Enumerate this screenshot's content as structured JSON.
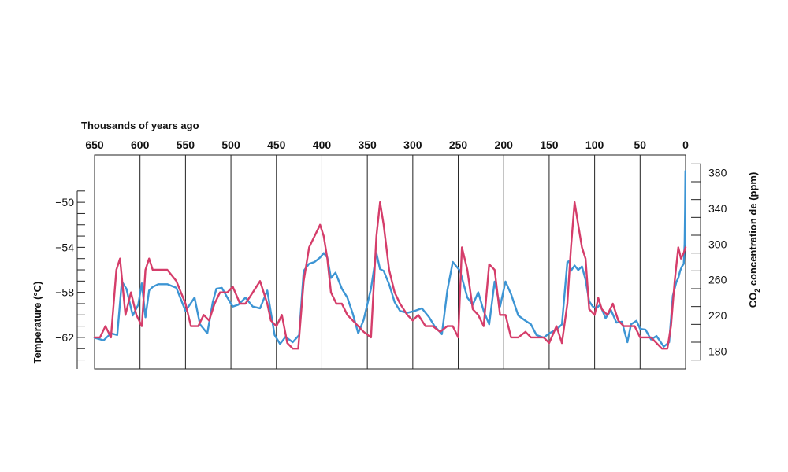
{
  "chart_data": {
    "type": "line",
    "xlabel": "Thousands of years ago",
    "x_ticks": [
      "650",
      "600",
      "550",
      "500",
      "450",
      "400",
      "350",
      "300",
      "250",
      "200",
      "150",
      "100",
      "50",
      "0"
    ],
    "xlim": [
      650,
      0
    ],
    "y_left": {
      "label": "Temperature (°C)",
      "ticks": [
        "−50",
        "−54",
        "−58",
        "−62"
      ],
      "tick_values": [
        -50,
        -54,
        -58,
        -62
      ],
      "lim": [
        -64.8,
        -45.8
      ]
    },
    "y_right": {
      "label_prefix": "CO",
      "label_sub": "2",
      "label_suffix": " concentration de  (ppm)",
      "ticks": [
        "380",
        "340",
        "300",
        "260",
        "220",
        "180"
      ],
      "tick_values": [
        380,
        340,
        300,
        260,
        220,
        180
      ],
      "lim": [
        160,
        400
      ]
    },
    "series": [
      {
        "axis": "right",
        "color": "#3d95d4",
        "x": [
          650,
          640,
          632,
          625,
          620,
          615,
          608,
          602,
          598,
          594,
          590,
          586,
          580,
          570,
          560,
          550,
          540,
          534,
          526,
          520,
          516,
          510,
          504,
          498,
          492,
          484,
          476,
          468,
          460,
          452,
          446,
          440,
          432,
          425,
          420,
          414,
          408,
          402,
          398,
          394,
          390,
          385,
          378,
          372,
          366,
          360,
          354,
          346,
          340,
          336,
          332,
          326,
          320,
          314,
          306,
          298,
          290,
          282,
          276,
          268,
          262,
          256,
          248,
          240,
          234,
          228,
          222,
          216,
          210,
          204,
          198,
          192,
          184,
          176,
          170,
          164,
          156,
          150,
          142,
          136,
          130,
          128,
          126,
          122,
          118,
          114,
          110,
          106,
          102,
          98,
          94,
          88,
          82,
          76,
          70,
          64,
          60,
          54,
          50,
          44,
          38,
          32,
          24,
          18,
          14,
          10,
          8,
          6,
          4,
          2,
          1,
          0.5,
          0.2
        ],
        "y": [
          195,
          192,
          200,
          198,
          258,
          250,
          220,
          232,
          256,
          218,
          248,
          252,
          255,
          255,
          251,
          225,
          240,
          210,
          200,
          235,
          250,
          251,
          240,
          230,
          232,
          240,
          230,
          228,
          248,
          198,
          188,
          196,
          190,
          198,
          270,
          278,
          280,
          285,
          290,
          285,
          262,
          268,
          250,
          240,
          222,
          200,
          215,
          250,
          290,
          272,
          270,
          255,
          235,
          225,
          223,
          225,
          228,
          218,
          208,
          199,
          248,
          280,
          270,
          240,
          232,
          246,
          225,
          210,
          258,
          230,
          258,
          244,
          220,
          214,
          210,
          198,
          195,
          200,
          204,
          210,
          280,
          281,
          270,
          276,
          271,
          275,
          260,
          236,
          230,
          228,
          232,
          217,
          226,
          212,
          213,
          190,
          210,
          214,
          205,
          204,
          193,
          197,
          185,
          190,
          242,
          258,
          262,
          270,
          275,
          278,
          300,
          340,
          382
        ]
      },
      {
        "axis": "left",
        "color": "#d53d6a",
        "x": [
          650,
          644,
          638,
          632,
          626,
          622,
          616,
          610,
          604,
          598,
          594,
          590,
          586,
          580,
          570,
          560,
          550,
          544,
          536,
          530,
          524,
          518,
          512,
          504,
          498,
          490,
          484,
          476,
          468,
          460,
          456,
          450,
          444,
          438,
          432,
          426,
          420,
          414,
          408,
          402,
          398,
          394,
          390,
          384,
          378,
          372,
          366,
          360,
          354,
          346,
          340,
          336,
          332,
          326,
          320,
          314,
          306,
          300,
          294,
          286,
          278,
          270,
          262,
          256,
          250,
          246,
          240,
          234,
          228,
          222,
          216,
          210,
          204,
          198,
          192,
          184,
          176,
          170,
          164,
          156,
          150,
          142,
          136,
          130,
          126,
          122,
          118,
          114,
          110,
          106,
          100,
          96,
          92,
          86,
          80,
          74,
          68,
          62,
          56,
          50,
          44,
          38,
          32,
          26,
          20,
          16,
          12,
          8,
          5,
          2,
          0
        ],
        "y": [
          -62,
          -62,
          -61,
          -62,
          -56,
          -55,
          -60,
          -58,
          -60,
          -61,
          -56,
          -55,
          -56,
          -56,
          -56,
          -57,
          -59,
          -61,
          -61,
          -60,
          -60.5,
          -59,
          -58,
          -58,
          -57.5,
          -59,
          -59,
          -58,
          -57,
          -59,
          -60.5,
          -61,
          -60,
          -62.5,
          -63,
          -63,
          -57,
          -54,
          -53,
          -52,
          -53,
          -55,
          -58,
          -59,
          -59,
          -60,
          -60.5,
          -61,
          -61.5,
          -62,
          -53,
          -50,
          -52,
          -56,
          -58,
          -59,
          -60,
          -60.5,
          -60,
          -61,
          -61,
          -61.5,
          -61,
          -61,
          -62,
          -54,
          -56,
          -59.5,
          -60,
          -61,
          -55.5,
          -56,
          -60,
          -60,
          -62,
          -62,
          -61.5,
          -62,
          -62,
          -62,
          -62.5,
          -61,
          -62.5,
          -59,
          -54,
          -50,
          -52,
          -54,
          -55,
          -59.5,
          -60,
          -58.5,
          -59.5,
          -60,
          -59,
          -60.5,
          -61,
          -61,
          -61,
          -62,
          -62,
          -62,
          -62.5,
          -63,
          -63,
          -61,
          -57,
          -54,
          -55,
          -54.5,
          -54
        ]
      }
    ]
  }
}
